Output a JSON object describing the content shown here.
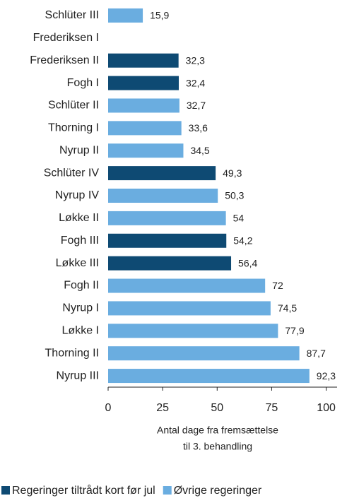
{
  "chart_data": {
    "type": "bar",
    "orientation": "horizontal",
    "categories": [
      "Schlüter III",
      "Frederiksen I",
      "Frederiksen II",
      "Fogh I",
      "Schlüter II",
      "Thorning I",
      "Nyrup II",
      "Schlüter IV",
      "Nyrup IV",
      "Løkke II",
      "Fogh III",
      "Løkke III",
      "Fogh II",
      "Nyrup I",
      "Løkke I",
      "Thorning II",
      "Nyrup III"
    ],
    "series": [
      {
        "name": "Regeringer tiltrådt kort før jul",
        "color": "#0e4a73",
        "values": [
          null,
          null,
          32.3,
          32.4,
          null,
          null,
          null,
          49.3,
          null,
          null,
          54.2,
          56.4,
          null,
          null,
          null,
          null,
          null
        ],
        "value_labels": [
          null,
          null,
          "32,3",
          "32,4",
          null,
          null,
          null,
          "49,3",
          null,
          null,
          "54,2",
          "56,4",
          null,
          null,
          null,
          null,
          null
        ]
      },
      {
        "name": "Øvrige regeringer",
        "color": "#6aade0",
        "values": [
          15.9,
          null,
          null,
          null,
          32.7,
          33.6,
          34.5,
          null,
          50.3,
          54,
          null,
          null,
          72,
          74.5,
          77.9,
          87.7,
          92.3
        ],
        "value_labels": [
          "15,9",
          null,
          null,
          null,
          "32,7",
          "33,6",
          "34,5",
          null,
          "50,3",
          "54",
          null,
          null,
          "72",
          "74,5",
          "77,9",
          "87,7",
          "92,3"
        ]
      }
    ],
    "xlabel": [
      "Antal dage fra fremsættelse",
      "til 3. behandling"
    ],
    "xlim": [
      0,
      105
    ],
    "xticks": [
      0,
      25,
      50,
      75,
      100
    ],
    "grid": false,
    "legend": "bottom"
  }
}
